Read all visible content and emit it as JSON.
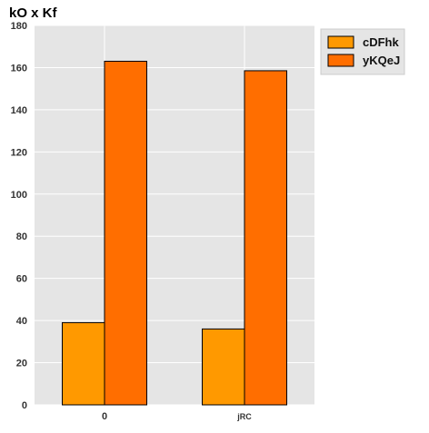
{
  "chart_data": {
    "type": "bar",
    "title": "kO x Kf",
    "xlabel": "",
    "ylabel": "",
    "categories": [
      "0",
      "jRC"
    ],
    "series": [
      {
        "name": "cDFhk",
        "values": [
          39,
          36
        ],
        "color": "#ff9900"
      },
      {
        "name": "yKQeJ",
        "values": [
          163,
          158.5
        ],
        "color": "#ff6e00"
      }
    ],
    "ylim": [
      0,
      180
    ],
    "yticks": [
      0,
      20,
      40,
      60,
      80,
      100,
      120,
      140,
      160,
      180
    ],
    "grid": true,
    "legend_position": "top-right, outside plot area",
    "colors": {
      "plot_background": "#e5e5e5",
      "grid": "#ffffff",
      "bar_edge": "#000000"
    }
  }
}
